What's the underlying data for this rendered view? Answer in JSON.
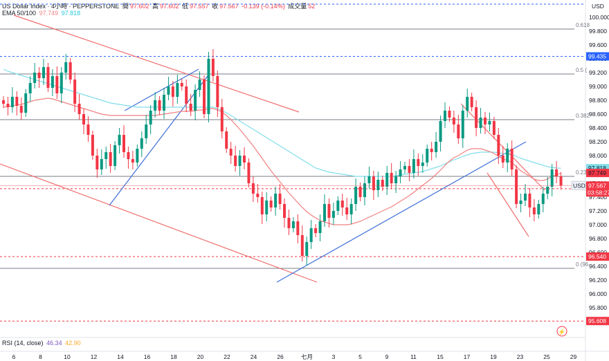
{
  "header": {
    "symbol_line": "US Dollar Index · 4小時 · PEPPERSTONE",
    "open_label": "開",
    "open": "97.602",
    "high_label": "高",
    "high": "97.602",
    "low_label": "低",
    "low": "97.557",
    "close_label": "收",
    "close": "97.567",
    "change": "-0.139 (-0.14%)",
    "volume_label": "成交量",
    "volume": "52",
    "ema_label": "EMA 50/100",
    "ema50": "97.749",
    "ema100": "97.818"
  },
  "currency": "USD",
  "rsi": {
    "label": "RSI (14, close)",
    "value1": "46.34",
    "value2": "42.90"
  },
  "price_tag": {
    "symbol": "USDX",
    "price": "97.567",
    "countdown": "03:58:27"
  },
  "colors": {
    "up": "#089981",
    "down": "#f23645",
    "ema50": "#f08080",
    "ema100": "#80deea",
    "channel": "#f06c6c",
    "trend": "#3d6ed8",
    "fib": "#787b86"
  },
  "chart_data": {
    "type": "candlestick",
    "y_range": [
      95.45,
      100.15
    ],
    "y_ticks": [
      "100.000",
      "99.800",
      "99.600",
      "99.400",
      "99.200",
      "99.000",
      "98.800",
      "98.600",
      "98.400",
      "98.200",
      "98.000",
      "97.800",
      "97.600",
      "97.400",
      "97.200",
      "97.000",
      "96.800",
      "96.600",
      "96.400",
      "96.200",
      "96.000",
      "95.800"
    ],
    "x_ticks": [
      "6",
      "8",
      "10",
      "12",
      "14",
      "16",
      "18",
      "20",
      "22",
      "24",
      "26",
      "七月",
      "3",
      "5",
      "9",
      "11",
      "15",
      "17",
      "19",
      "23",
      "25",
      "29"
    ],
    "closes": [
      98.75,
      98.7,
      98.85,
      98.72,
      98.62,
      98.9,
      99.05,
      99.2,
      99.12,
      99.28,
      98.98,
      99.15,
      98.9,
      99.2,
      99.35,
      99.1,
      98.75,
      98.6,
      98.45,
      98.3,
      98.0,
      97.8,
      97.95,
      98.05,
      97.85,
      98.15,
      98.3,
      98.05,
      97.95,
      97.9,
      98.1,
      98.25,
      98.45,
      98.65,
      98.8,
      98.65,
      98.88,
      99.0,
      98.85,
      99.05,
      99.0,
      98.75,
      98.65,
      98.95,
      99.1,
      98.6,
      99.4,
      99.15,
      98.7,
      98.35,
      98.1,
      98.0,
      97.85,
      98.0,
      97.9,
      97.6,
      97.45,
      97.4,
      97.15,
      97.35,
      97.25,
      97.45,
      97.3,
      97.1,
      96.95,
      97.05,
      96.85,
      96.55,
      96.75,
      96.95,
      96.88,
      97.05,
      97.3,
      97.1,
      97.2,
      97.35,
      97.25,
      97.15,
      97.3,
      97.55,
      97.4,
      97.6,
      97.7,
      97.5,
      97.65,
      97.55,
      97.75,
      97.6,
      97.7,
      97.8,
      97.85,
      97.75,
      97.95,
      97.85,
      97.9,
      98.1,
      98.05,
      98.2,
      98.5,
      98.65,
      98.55,
      98.45,
      98.25,
      98.65,
      98.85,
      98.7,
      98.4,
      98.55,
      98.45,
      98.5,
      98.3,
      98.0,
      97.9,
      98.1,
      97.8,
      97.3,
      97.35,
      97.45,
      97.25,
      97.15,
      97.3,
      97.45,
      97.55,
      97.8,
      97.7,
      97.567
    ],
    "ema50": [
      98.7,
      98.71,
      98.72,
      98.73,
      98.74,
      98.76,
      98.78,
      98.8,
      98.81,
      98.82,
      98.83,
      98.82,
      98.8,
      98.78,
      98.76,
      98.74,
      98.72,
      98.7,
      98.68,
      98.66,
      98.64,
      98.62,
      98.6,
      98.59,
      98.58,
      98.58,
      98.58,
      98.58,
      98.58,
      98.58,
      98.58,
      98.58,
      98.58,
      98.58,
      98.58,
      98.59,
      98.6,
      98.61,
      98.62,
      98.63,
      98.64,
      98.64,
      98.64,
      98.65,
      98.66,
      98.66,
      98.68,
      98.68,
      98.66,
      98.63,
      98.58,
      98.52,
      98.45,
      98.38,
      98.3,
      98.22,
      98.14,
      98.05,
      97.96,
      97.87,
      97.78,
      97.7,
      97.62,
      97.54,
      97.46,
      97.39,
      97.32,
      97.25,
      97.19,
      97.14,
      97.1,
      97.06,
      97.04,
      97.02,
      97.0,
      97.0,
      97.0,
      97.0,
      97.01,
      97.03,
      97.05,
      97.08,
      97.11,
      97.14,
      97.17,
      97.2,
      97.23,
      97.26,
      97.3,
      97.34,
      97.38,
      97.42,
      97.47,
      97.52,
      97.57,
      97.62,
      97.67,
      97.73,
      97.79,
      97.86,
      97.92,
      97.97,
      98.0,
      98.04,
      98.08,
      98.1,
      98.1,
      98.1,
      98.08,
      98.06,
      98.03,
      97.99,
      97.95,
      97.93,
      97.9,
      97.84,
      97.78,
      97.74,
      97.7,
      97.66,
      97.64,
      97.64,
      97.66,
      97.7,
      97.72,
      97.749
    ],
    "ema100": [
      99.25,
      99.22,
      99.2,
      99.18,
      99.16,
      99.14,
      99.12,
      99.1,
      99.08,
      99.06,
      99.04,
      99.02,
      99.0,
      98.98,
      98.96,
      98.94,
      98.92,
      98.9,
      98.88,
      98.86,
      98.84,
      98.82,
      98.8,
      98.78,
      98.76,
      98.75,
      98.74,
      98.73,
      98.72,
      98.71,
      98.7,
      98.7,
      98.7,
      98.7,
      98.7,
      98.7,
      98.7,
      98.7,
      98.7,
      98.7,
      98.7,
      98.7,
      98.7,
      98.7,
      98.7,
      98.7,
      98.7,
      98.7,
      98.68,
      98.65,
      98.62,
      98.58,
      98.54,
      98.5,
      98.46,
      98.42,
      98.38,
      98.34,
      98.3,
      98.26,
      98.22,
      98.18,
      98.14,
      98.1,
      98.06,
      98.02,
      97.98,
      97.94,
      97.9,
      97.86,
      97.82,
      97.8,
      97.78,
      97.76,
      97.75,
      97.74,
      97.73,
      97.72,
      97.71,
      97.7,
      97.7,
      97.7,
      97.7,
      97.7,
      97.7,
      97.7,
      97.7,
      97.7,
      97.71,
      97.72,
      97.73,
      97.74,
      97.75,
      97.76,
      97.77,
      97.79,
      97.81,
      97.83,
      97.85,
      97.88,
      97.91,
      97.94,
      97.96,
      97.99,
      98.01,
      98.03,
      98.04,
      98.05,
      98.05,
      98.05,
      98.05,
      98.04,
      98.03,
      98.02,
      98.01,
      97.99,
      97.96,
      97.94,
      97.92,
      97.9,
      97.88,
      97.86,
      97.84,
      97.83,
      97.82,
      97.818
    ],
    "fib_levels": [
      {
        "label": "0.618",
        "price": 99.83
      },
      {
        "label": "0.5 (",
        "price": 99.18
      },
      {
        "label": "0.382",
        "price": 98.52
      },
      {
        "label": "0.236",
        "price": 97.7
      },
      {
        "label": "0 (96",
        "price": 96.37
      }
    ],
    "dashed_levels": [
      {
        "price": 99.435,
        "label": "99.435",
        "color": "#2962ff"
      },
      {
        "price": 97.521,
        "label": "97.521",
        "color": "#f23645"
      },
      {
        "price": 96.54,
        "label": "96.540",
        "color": "#f23645"
      },
      {
        "price": 95.608,
        "label": "95.608",
        "color": "#f23645"
      }
    ],
    "last_ema_tags": [
      {
        "price": 97.818,
        "label": "97.818",
        "color": "#80deea"
      },
      {
        "price": 97.749,
        "label": "97.749",
        "color": "#f23645"
      }
    ]
  }
}
